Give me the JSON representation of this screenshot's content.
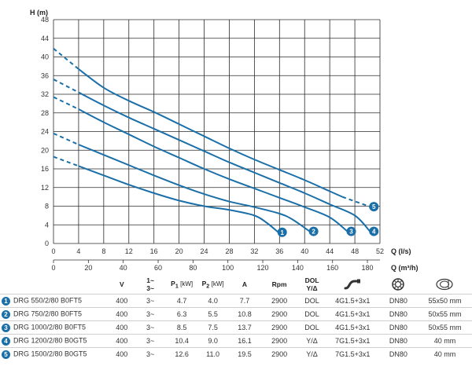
{
  "chart_data": {
    "type": "line",
    "xlabel": "Q (l/s)",
    "x2label": "Q (m³/h)",
    "ylabel": "H (m)",
    "xlim": [
      0,
      52
    ],
    "ylim": [
      0,
      48
    ],
    "x_ticks": [
      "0",
      "4",
      "8",
      "12",
      "16",
      "20",
      "24",
      "28",
      "32",
      "36",
      "40",
      "44",
      "48",
      "52"
    ],
    "x2_ticks": [
      "0",
      "20",
      "40",
      "60",
      "80",
      "100",
      "120",
      "140",
      "160",
      "180"
    ],
    "y_ticks": [
      "0",
      "4",
      "8",
      "12",
      "16",
      "20",
      "24",
      "28",
      "32",
      "36",
      "40",
      "44",
      "48"
    ],
    "grid": true,
    "series": [
      {
        "name": "1",
        "dashed": [
          [
            0,
            18.6
          ],
          [
            4,
            16.6
          ]
        ],
        "x": [
          4,
          8,
          12,
          16,
          20,
          24,
          28,
          32,
          34,
          35.8
        ],
        "y": [
          16.6,
          14.6,
          12.6,
          10.8,
          9.2,
          8,
          7.2,
          6,
          4.4,
          2.4
        ]
      },
      {
        "name": "2",
        "dashed": [
          [
            0,
            23.6
          ],
          [
            4,
            21.2
          ]
        ],
        "x": [
          4,
          8,
          12,
          16,
          20,
          24,
          28,
          32,
          36,
          38,
          40.8
        ],
        "y": [
          21.2,
          19,
          16.8,
          14.6,
          12.5,
          10.6,
          9,
          7.8,
          6.4,
          5.2,
          2.6
        ]
      },
      {
        "name": "3",
        "dashed": [
          [
            0,
            31.4
          ],
          [
            4,
            28.8
          ]
        ],
        "x": [
          4,
          8,
          12,
          16,
          20,
          24,
          28,
          32,
          36,
          40,
          44,
          46.8
        ],
        "y": [
          28.8,
          26,
          23.4,
          20.8,
          18.4,
          16,
          13.8,
          11.8,
          9.8,
          7.8,
          5.6,
          2.6
        ]
      },
      {
        "name": "4",
        "dashed": [
          [
            0,
            35.2
          ],
          [
            4,
            32.4
          ]
        ],
        "x": [
          4,
          8,
          12,
          16,
          20,
          24,
          28,
          32,
          36,
          40,
          44,
          48,
          50.4
        ],
        "y": [
          32.4,
          29.6,
          27,
          24.6,
          22.2,
          19.8,
          17.4,
          15.2,
          13,
          10.8,
          8.4,
          6,
          2.6
        ]
      },
      {
        "name": "5",
        "dashed": [
          [
            0,
            41.8
          ],
          [
            4,
            37.4
          ],
          [
            46,
            10
          ],
          [
            50.4,
            7.9
          ]
        ],
        "x": [
          4,
          8,
          12,
          16,
          20,
          24,
          28,
          32,
          36,
          40,
          44,
          46
        ],
        "y": [
          37.4,
          33.4,
          30.6,
          28.2,
          25.6,
          23,
          20.4,
          18,
          15.8,
          13.6,
          11.2,
          10
        ]
      }
    ]
  },
  "table": {
    "headers": {
      "model": "",
      "v": "V",
      "phase": [
        "1~",
        "3~"
      ],
      "p1": "P",
      "p1_sub": "1",
      "p1_unit": "[kW]",
      "p2": "P",
      "p2_sub": "2",
      "p2_unit": "[kW]",
      "a": "A",
      "rpm": "Rpm",
      "start": [
        "DOL",
        "Y/Δ"
      ],
      "cable_icon": "cable-icon",
      "outlet_icon": "pump-outlet-icon",
      "passage_icon": "free-passage-icon"
    },
    "rows": [
      {
        "num": "1",
        "model": "DRG 550/2/80 B0FT5",
        "v": "400",
        "phase": "3~",
        "p1": "4.7",
        "p2": "4.0",
        "a": "7.7",
        "rpm": "2900",
        "start": "DOL",
        "cable": "4G1.5+3x1",
        "outlet": "DN80",
        "passage": "55x50 mm"
      },
      {
        "num": "2",
        "model": "DRG 750/2/80 B0FT5",
        "v": "400",
        "phase": "3~",
        "p1": "6.3",
        "p2": "5.5",
        "a": "10.8",
        "rpm": "2900",
        "start": "DOL",
        "cable": "4G1.5+3x1",
        "outlet": "DN80",
        "passage": "50x55 mm"
      },
      {
        "num": "3",
        "model": "DRG 1000/2/80 B0FT5",
        "v": "400",
        "phase": "3~",
        "p1": "8.5",
        "p2": "7.5",
        "a": "13.7",
        "rpm": "2900",
        "start": "DOL",
        "cable": "4G1.5+3x1",
        "outlet": "DN80",
        "passage": "50x55 mm"
      },
      {
        "num": "4",
        "model": "DRG 1200/2/80 B0GT5",
        "v": "400",
        "phase": "3~",
        "p1": "10.4",
        "p2": "9.0",
        "a": "16.1",
        "rpm": "2900",
        "start": "Y/Δ",
        "cable": "7G1.5+3x1",
        "outlet": "DN80",
        "passage": "40 mm"
      },
      {
        "num": "5",
        "model": "DRG 1500/2/80 B0GT5",
        "v": "400",
        "phase": "3~",
        "p1": "12.6",
        "p2": "11.0",
        "a": "19.5",
        "rpm": "2900",
        "start": "Y/Δ",
        "cable": "7G1.5+3x1",
        "outlet": "DN80",
        "passage": "40 mm"
      }
    ]
  },
  "colors": {
    "curve": "#1a6fa8",
    "grid": "#2a2a2a",
    "text": "#333333"
  }
}
